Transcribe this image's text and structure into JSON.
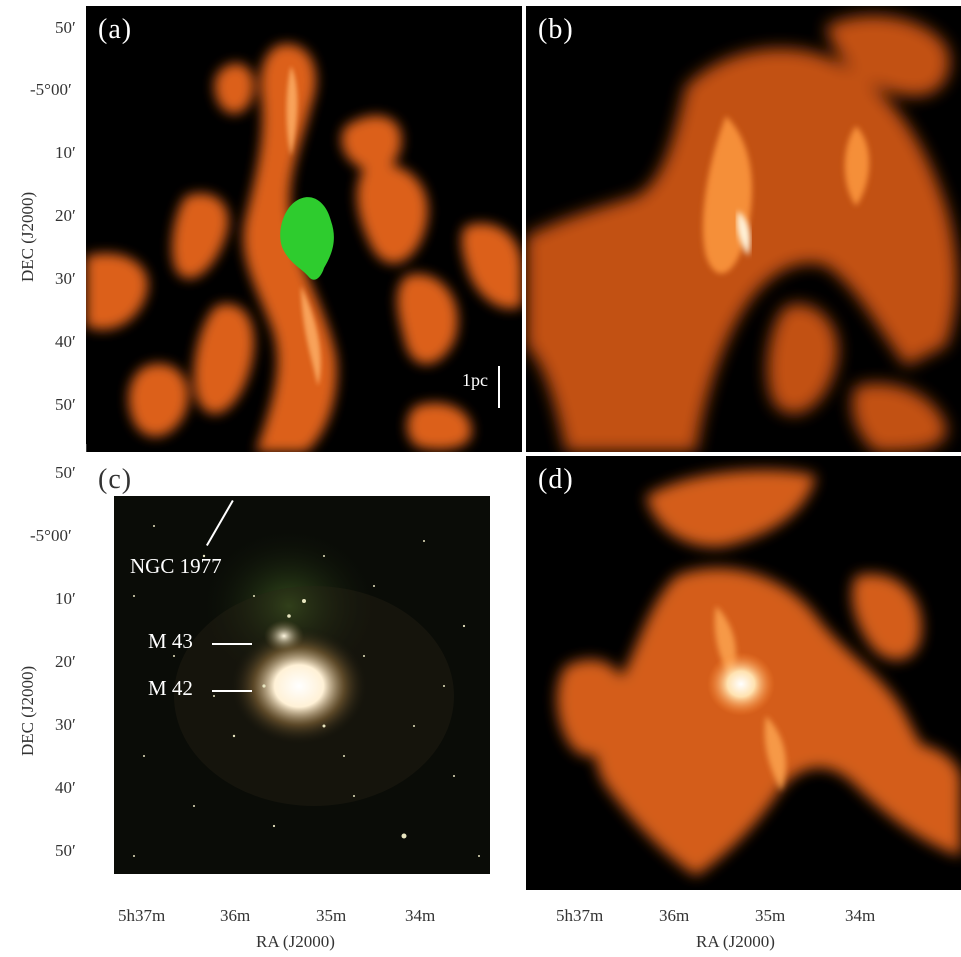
{
  "panels": {
    "a": {
      "label": "(a)"
    },
    "b": {
      "label": "(b)"
    },
    "c": {
      "label": "(c)"
    },
    "d": {
      "label": "(d)"
    }
  },
  "scale_bar": {
    "label": "1pc"
  },
  "annotations": {
    "ngc1977": "NGC 1977",
    "m43": "M 43",
    "m42": "M 42"
  },
  "axes": {
    "dec_title": "DEC (J2000)",
    "ra_title": "RA (J2000)",
    "dec_ticks_top": [
      "50′",
      "-5°00′",
      "10′",
      "20′",
      "30′",
      "40′",
      "50′"
    ],
    "dec_ticks_bottom": [
      "50′",
      "-5°00′",
      "10′",
      "20′",
      "30′",
      "40′",
      "50′"
    ],
    "ra_ticks_left": [
      "5h37m",
      "36m",
      "35m",
      "34m"
    ],
    "ra_ticks_right": [
      "5h37m",
      "36m",
      "35m",
      "34m"
    ]
  },
  "colors": {
    "emission_orange": "#ff7a1a",
    "emission_bright": "#ffd9a0",
    "marker_green": "#2ecc2e",
    "background_black": "#000000"
  }
}
